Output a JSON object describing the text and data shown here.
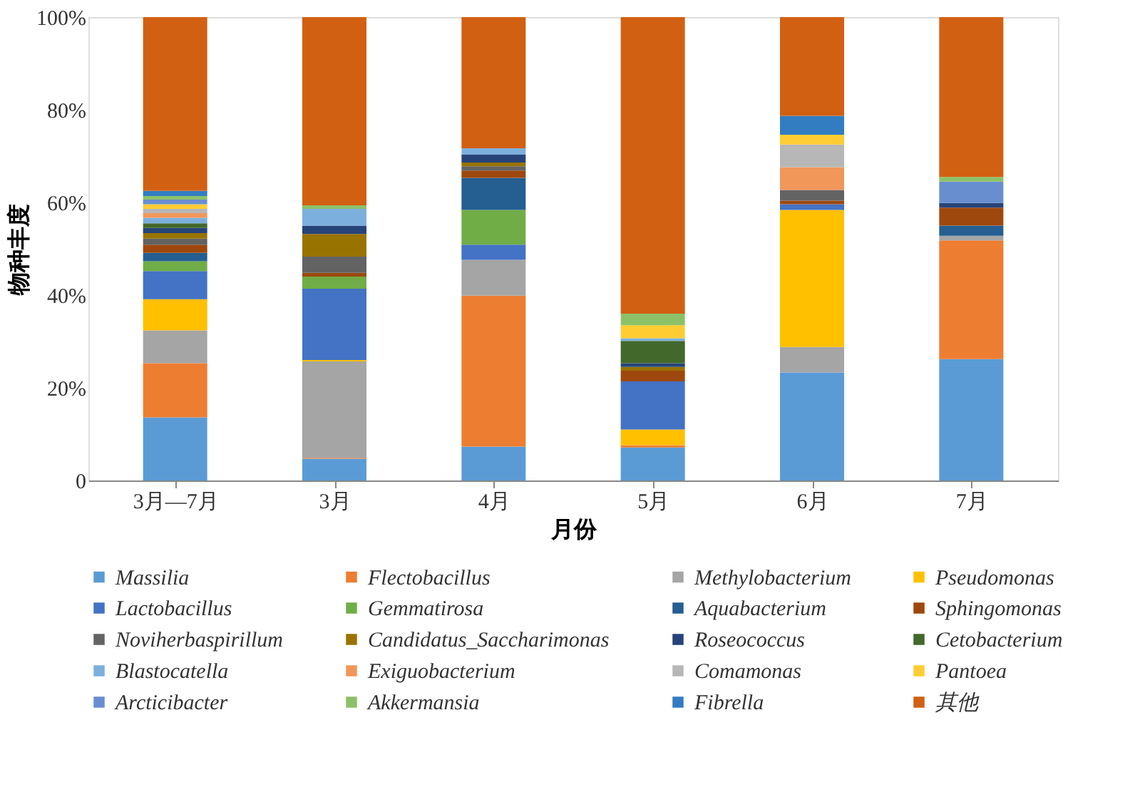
{
  "chart_data": {
    "type": "bar",
    "stacked": true,
    "xlabel": "月份",
    "ylabel": "物种丰度",
    "categories": [
      "3月—7月",
      "3月",
      "4月",
      "5月",
      "6月",
      "7月"
    ],
    "ylim": [
      0,
      100
    ],
    "yticks": [
      {
        "value": 0,
        "label": "0"
      },
      {
        "value": 20,
        "label": "20%"
      },
      {
        "value": 40,
        "label": "40%"
      },
      {
        "value": 60,
        "label": "60%"
      },
      {
        "value": 80,
        "label": "80%"
      },
      {
        "value": 100,
        "label": "100%"
      }
    ],
    "grid": false,
    "legend": "bottom",
    "series": [
      {
        "name": "Massilia",
        "color": "#5b9bd5",
        "values": [
          13.6,
          4.7,
          7.3,
          7.1,
          23.3,
          26.2
        ]
      },
      {
        "name": "Flectobacillus",
        "color": "#ed7d31",
        "values": [
          11.7,
          0.2,
          32.6,
          0.5,
          null,
          25.6
        ]
      },
      {
        "name": "Methylobacterium",
        "color": "#a5a5a5",
        "values": [
          7.1,
          20.8,
          7.7,
          null,
          5.5,
          1.0
        ]
      },
      {
        "name": "Pseudomonas",
        "color": "#ffc000",
        "values": [
          6.7,
          0.3,
          null,
          3.4,
          29.6,
          null
        ]
      },
      {
        "name": "Lactobacillus",
        "color": "#4472c4",
        "values": [
          6.1,
          15.4,
          3.3,
          10.4,
          1.2,
          null
        ]
      },
      {
        "name": "Gemmatirosa",
        "color": "#70ad47",
        "values": [
          2.1,
          2.6,
          7.5,
          null,
          null,
          null
        ]
      },
      {
        "name": "Aquabacterium",
        "color": "#255e91",
        "values": [
          1.8,
          null,
          6.9,
          null,
          null,
          2.2
        ]
      },
      {
        "name": "Sphingomonas",
        "color": "#9e480e",
        "values": [
          1.8,
          0.8,
          1.6,
          2.3,
          0.8,
          3.9
        ]
      },
      {
        "name": "Noviherbaspirillum",
        "color": "#636363",
        "values": [
          1.3,
          3.5,
          0.9,
          null,
          2.3,
          null
        ]
      },
      {
        "name": "Candidatus_Saccharimonas",
        "color": "#997300",
        "values": [
          1.2,
          4.9,
          0.8,
          0.8,
          null,
          null
        ]
      },
      {
        "name": "Roseococcus",
        "color": "#264478",
        "values": [
          1.1,
          1.8,
          1.8,
          0.8,
          null,
          1.0
        ]
      },
      {
        "name": "Cetobacterium",
        "color": "#43682b",
        "values": [
          1.0,
          null,
          null,
          4.8,
          null,
          null
        ]
      },
      {
        "name": "Blastocatella",
        "color": "#7cafdd",
        "values": [
          1.2,
          3.6,
          1.3,
          0.6,
          null,
          null
        ]
      },
      {
        "name": "Exiguobacterium",
        "color": "#f1975a",
        "values": [
          1.0,
          null,
          null,
          null,
          4.9,
          null
        ]
      },
      {
        "name": "Comamonas",
        "color": "#b7b7b7",
        "values": [
          0.9,
          null,
          null,
          null,
          4.9,
          null
        ]
      },
      {
        "name": "Pantoea",
        "color": "#ffcd33",
        "values": [
          1.0,
          null,
          null,
          2.8,
          2.1,
          null
        ]
      },
      {
        "name": "Arcticibacter",
        "color": "#698ed0",
        "values": [
          1.0,
          null,
          null,
          null,
          null,
          4.6
        ]
      },
      {
        "name": "Akkermansia",
        "color": "#8cc168",
        "values": [
          0.8,
          0.8,
          null,
          2.5,
          null,
          1.0
        ]
      },
      {
        "name": "Fibrella",
        "color": "#327dc2",
        "values": [
          1.1,
          null,
          null,
          null,
          4.1,
          null
        ]
      },
      {
        "name": "其他",
        "color": "#d26012",
        "values": [
          37.5,
          40.6,
          28.3,
          64.0,
          21.3,
          34.5
        ]
      }
    ]
  }
}
